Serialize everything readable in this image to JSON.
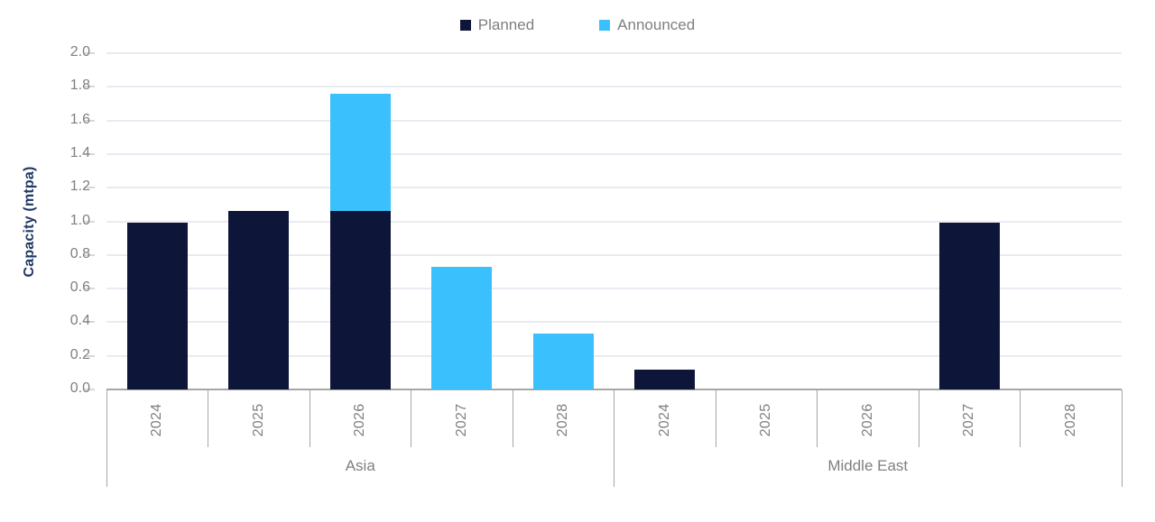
{
  "legend": {
    "planned_label": "Planned",
    "announced_label": "Announced"
  },
  "chart_data": {
    "type": "bar",
    "stacked": true,
    "title": "",
    "xlabel": "",
    "ylabel": "Capacity (mtpa)",
    "ylim": [
      0,
      2.0
    ],
    "ytick_step": 0.2,
    "ytick_labels": [
      "0.0",
      "0.2",
      "0.4",
      "0.6",
      "0.8",
      "1.0",
      "1.2",
      "1.4",
      "1.6",
      "1.8",
      "2.0"
    ],
    "grid": "horizontal",
    "legend_position": "top-center",
    "groups": [
      {
        "label": "Asia",
        "categories": [
          "2024",
          "2025",
          "2026",
          "2027",
          "2028"
        ]
      },
      {
        "label": "Middle East",
        "categories": [
          "2024",
          "2025",
          "2026",
          "2027",
          "2028"
        ]
      }
    ],
    "series": [
      {
        "name": "Planned",
        "color": "#0d1638",
        "values": {
          "Asia": [
            0.99,
            1.06,
            1.06,
            0,
            0
          ],
          "Middle East": [
            0.12,
            0,
            0,
            0.99,
            0
          ]
        }
      },
      {
        "name": "Announced",
        "color": "#3ac0fc",
        "values": {
          "Asia": [
            0,
            0,
            0.7,
            0.73,
            0.33
          ],
          "Middle East": [
            0,
            0,
            0,
            0,
            0
          ]
        }
      }
    ],
    "colors": {
      "axis_text": "#7f7f7f",
      "gridline": "#e9ebf2",
      "axis_line": "#a6a6a6",
      "tick_dash": "#d9d9d9",
      "ylabel_color": "#1f3864"
    }
  }
}
